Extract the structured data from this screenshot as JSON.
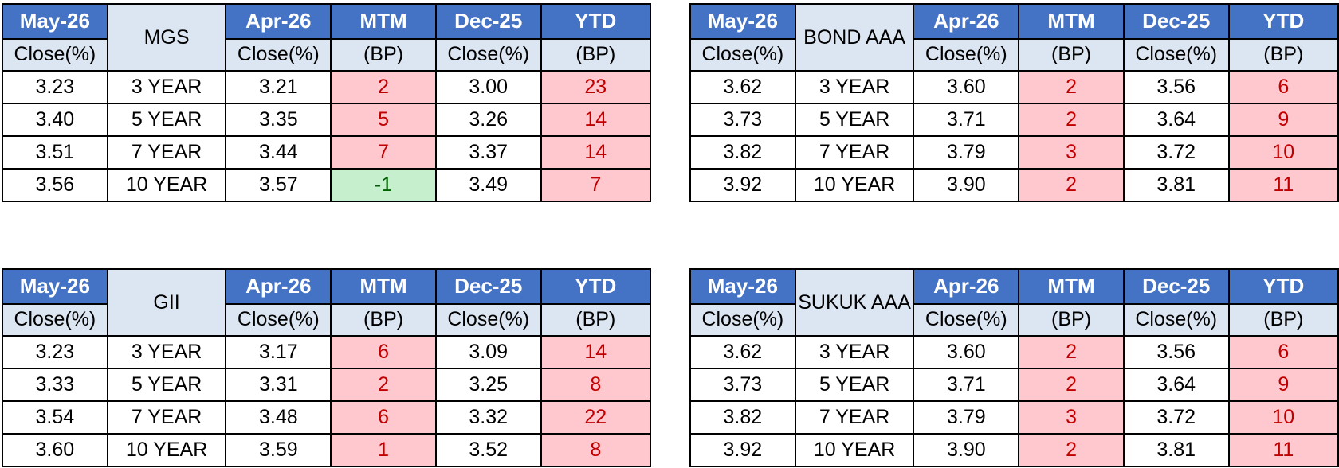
{
  "header_top": {
    "c1": "May-26",
    "c3": "Apr-26",
    "c4": "MTM",
    "c5": "Dec-25",
    "c6": "YTD"
  },
  "header_sub": {
    "c1": "Close(%)",
    "c3": "Close(%)",
    "c4": "(BP)",
    "c5": "Close(%)",
    "c6": "(BP)"
  },
  "colors": {
    "header_blue": "#4472c4",
    "header_light": "#dce6f2",
    "positive_bg": "#ffc7ce",
    "positive_text": "#c00000",
    "negative_bg": "#c6efce",
    "negative_text": "#006100"
  },
  "tables": [
    {
      "title": "MGS",
      "rows": [
        {
          "may": "3.23",
          "tenor": "3 YEAR",
          "apr": "3.21",
          "mtm": "2",
          "mtm_sign": "pos",
          "dec": "3.00",
          "ytd": "23",
          "ytd_sign": "pos"
        },
        {
          "may": "3.40",
          "tenor": "5 YEAR",
          "apr": "3.35",
          "mtm": "5",
          "mtm_sign": "pos",
          "dec": "3.26",
          "ytd": "14",
          "ytd_sign": "pos"
        },
        {
          "may": "3.51",
          "tenor": "7 YEAR",
          "apr": "3.44",
          "mtm": "7",
          "mtm_sign": "pos",
          "dec": "3.37",
          "ytd": "14",
          "ytd_sign": "pos"
        },
        {
          "may": "3.56",
          "tenor": "10 YEAR",
          "apr": "3.57",
          "mtm": "-1",
          "mtm_sign": "neg",
          "dec": "3.49",
          "ytd": "7",
          "ytd_sign": "pos"
        }
      ]
    },
    {
      "title": "BOND AAA",
      "rows": [
        {
          "may": "3.62",
          "tenor": "3 YEAR",
          "apr": "3.60",
          "mtm": "2",
          "mtm_sign": "pos",
          "dec": "3.56",
          "ytd": "6",
          "ytd_sign": "pos"
        },
        {
          "may": "3.73",
          "tenor": "5 YEAR",
          "apr": "3.71",
          "mtm": "2",
          "mtm_sign": "pos",
          "dec": "3.64",
          "ytd": "9",
          "ytd_sign": "pos"
        },
        {
          "may": "3.82",
          "tenor": "7 YEAR",
          "apr": "3.79",
          "mtm": "3",
          "mtm_sign": "pos",
          "dec": "3.72",
          "ytd": "10",
          "ytd_sign": "pos"
        },
        {
          "may": "3.92",
          "tenor": "10 YEAR",
          "apr": "3.90",
          "mtm": "2",
          "mtm_sign": "pos",
          "dec": "3.81",
          "ytd": "11",
          "ytd_sign": "pos"
        }
      ]
    },
    {
      "title": "GII",
      "rows": [
        {
          "may": "3.23",
          "tenor": "3 YEAR",
          "apr": "3.17",
          "mtm": "6",
          "mtm_sign": "pos",
          "dec": "3.09",
          "ytd": "14",
          "ytd_sign": "pos"
        },
        {
          "may": "3.33",
          "tenor": "5 YEAR",
          "apr": "3.31",
          "mtm": "2",
          "mtm_sign": "pos",
          "dec": "3.25",
          "ytd": "8",
          "ytd_sign": "pos"
        },
        {
          "may": "3.54",
          "tenor": "7 YEAR",
          "apr": "3.48",
          "mtm": "6",
          "mtm_sign": "pos",
          "dec": "3.32",
          "ytd": "22",
          "ytd_sign": "pos"
        },
        {
          "may": "3.60",
          "tenor": "10 YEAR",
          "apr": "3.59",
          "mtm": "1",
          "mtm_sign": "pos",
          "dec": "3.52",
          "ytd": "8",
          "ytd_sign": "pos"
        }
      ]
    },
    {
      "title": "SUKUK AAA",
      "rows": [
        {
          "may": "3.62",
          "tenor": "3 YEAR",
          "apr": "3.60",
          "mtm": "2",
          "mtm_sign": "pos",
          "dec": "3.56",
          "ytd": "6",
          "ytd_sign": "pos"
        },
        {
          "may": "3.73",
          "tenor": "5 YEAR",
          "apr": "3.71",
          "mtm": "2",
          "mtm_sign": "pos",
          "dec": "3.64",
          "ytd": "9",
          "ytd_sign": "pos"
        },
        {
          "may": "3.82",
          "tenor": "7 YEAR",
          "apr": "3.79",
          "mtm": "3",
          "mtm_sign": "pos",
          "dec": "3.72",
          "ytd": "10",
          "ytd_sign": "pos"
        },
        {
          "may": "3.92",
          "tenor": "10 YEAR",
          "apr": "3.90",
          "mtm": "2",
          "mtm_sign": "pos",
          "dec": "3.81",
          "ytd": "11",
          "ytd_sign": "pos"
        }
      ]
    }
  ]
}
